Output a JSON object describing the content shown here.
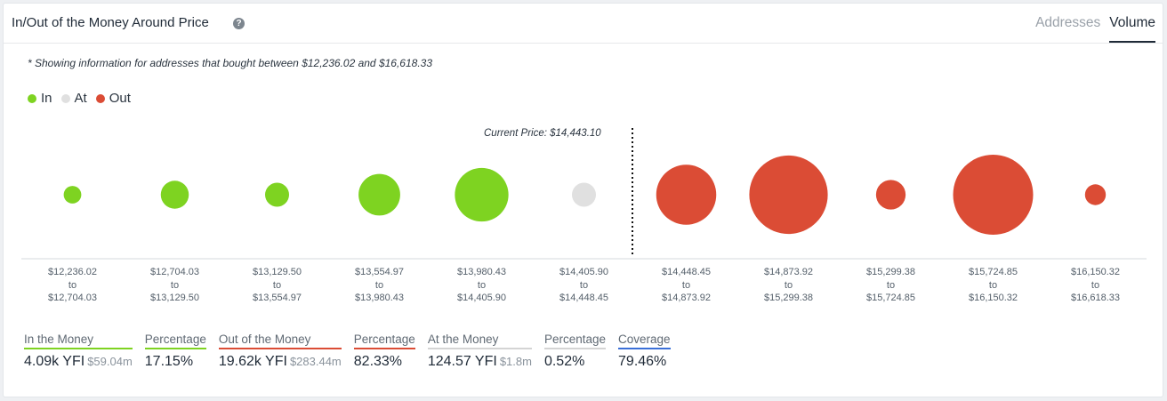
{
  "header": {
    "title": "In/Out of the Money Around Price",
    "help_icon": "question-circle-icon",
    "tabs": [
      {
        "label": "Addresses",
        "active": false
      },
      {
        "label": "Volume",
        "active": true
      }
    ]
  },
  "note": "* Showing information for addresses that bought between $12,236.02 and $16,618.33",
  "legend": [
    {
      "label": "In",
      "color": "#7ed321"
    },
    {
      "label": "At",
      "color": "#e0e0e0"
    },
    {
      "label": "Out",
      "color": "#db4c35"
    }
  ],
  "current_price_label": "Current Price: $14,443.10",
  "to_word": "to",
  "chart_data": {
    "type": "scatter",
    "bins": [
      {
        "from": "$12,236.02",
        "to": "$12,704.03",
        "status": "in",
        "relative_size": 0.22
      },
      {
        "from": "$12,704.03",
        "to": "$13,129.50",
        "status": "in",
        "relative_size": 0.35
      },
      {
        "from": "$13,129.50",
        "to": "$13,554.97",
        "status": "in",
        "relative_size": 0.3
      },
      {
        "from": "$13,554.97",
        "to": "$13,980.43",
        "status": "in",
        "relative_size": 0.52
      },
      {
        "from": "$13,980.43",
        "to": "$14,405.90",
        "status": "in",
        "relative_size": 0.67
      },
      {
        "from": "$14,405.90",
        "to": "$14,448.45",
        "status": "at",
        "relative_size": 0.3
      },
      {
        "from": "$14,448.45",
        "to": "$14,873.92",
        "status": "out",
        "relative_size": 0.75
      },
      {
        "from": "$14,873.92",
        "to": "$15,299.38",
        "status": "out",
        "relative_size": 0.98
      },
      {
        "from": "$15,299.38",
        "to": "$15,724.85",
        "status": "out",
        "relative_size": 0.37
      },
      {
        "from": "$15,724.85",
        "to": "$16,150.32",
        "status": "out",
        "relative_size": 1.0
      },
      {
        "from": "$16,150.32",
        "to": "$16,618.33",
        "status": "out",
        "relative_size": 0.26
      }
    ],
    "current_price": "$14,443.10"
  },
  "stats": [
    {
      "label": "In the Money",
      "value": "4.09k YFI",
      "sub": "$59.04m",
      "color": "#7ed321"
    },
    {
      "label": "Percentage",
      "value": "17.15%",
      "sub": "",
      "color": "#7ed321"
    },
    {
      "label": "Out of the Money",
      "value": "19.62k YFI",
      "sub": "$283.44m",
      "color": "#db4c35"
    },
    {
      "label": "Percentage",
      "value": "82.33%",
      "sub": "",
      "color": "#db4c35"
    },
    {
      "label": "At the Money",
      "value": "124.57 YFI",
      "sub": "$1.8m",
      "color": "#d4d4d4"
    },
    {
      "label": "Percentage",
      "value": "0.52%",
      "sub": "",
      "color": "#d4d4d4"
    },
    {
      "label": "Coverage",
      "value": "79.46%",
      "sub": "",
      "color": "#3a6fd8"
    }
  ]
}
